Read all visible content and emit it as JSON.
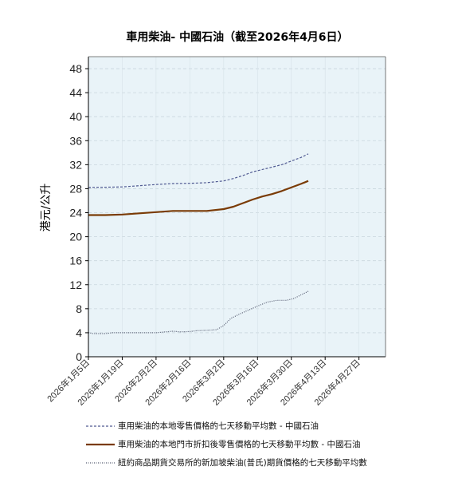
{
  "chart_data": {
    "type": "line",
    "title": "車用柴油- 中國石油（截至2026年4月6日）",
    "ylabel": "港元/公升",
    "xlabel": "",
    "ylim": [
      0,
      50
    ],
    "yticks": [
      0,
      4,
      8,
      12,
      16,
      20,
      24,
      28,
      32,
      36,
      40,
      44,
      48
    ],
    "x_range": [
      "2026-01-05",
      "2026-05-08"
    ],
    "x_ticks": [
      "2026年1月5日",
      "2026年1月19日",
      "2026年2月2日",
      "2026年2月16日",
      "2026年3月2日",
      "2026年3月16日",
      "2026年3月30日",
      "2026年4月13日",
      "2026年4月27日"
    ],
    "x_tick_dates": [
      "2026-01-05",
      "2026-01-19",
      "2026-02-02",
      "2026-02-16",
      "2026-03-02",
      "2026-03-16",
      "2026-03-30",
      "2026-04-13",
      "2026-04-27"
    ],
    "grid": "horizontal dashed",
    "plot_background": "#e9f3f8",
    "legend_position": "bottom",
    "series": [
      {
        "name": "車用柴油的本地零售價格的七天移動平均數  - 中國石油",
        "style": "dashed",
        "color": "#505a92",
        "points": [
          [
            "2026-01-05",
            28.2
          ],
          [
            "2026-01-12",
            28.25
          ],
          [
            "2026-01-19",
            28.3
          ],
          [
            "2026-01-26",
            28.5
          ],
          [
            "2026-02-02",
            28.7
          ],
          [
            "2026-02-09",
            28.85
          ],
          [
            "2026-02-16",
            28.9
          ],
          [
            "2026-02-23",
            29.0
          ],
          [
            "2026-03-02",
            29.3
          ],
          [
            "2026-03-06",
            29.7
          ],
          [
            "2026-03-10",
            30.2
          ],
          [
            "2026-03-14",
            30.8
          ],
          [
            "2026-03-18",
            31.2
          ],
          [
            "2026-03-22",
            31.6
          ],
          [
            "2026-03-26",
            32.0
          ],
          [
            "2026-03-30",
            32.6
          ],
          [
            "2026-04-03",
            33.2
          ],
          [
            "2026-04-06",
            33.8
          ]
        ]
      },
      {
        "name": "車用柴油的本地門市折扣後零售價格的七天移動平均數  - 中國石油",
        "style": "solid",
        "color": "#7a3b06",
        "points": [
          [
            "2026-01-05",
            23.6
          ],
          [
            "2026-01-12",
            23.6
          ],
          [
            "2026-01-19",
            23.7
          ],
          [
            "2026-01-26",
            23.9
          ],
          [
            "2026-02-02",
            24.1
          ],
          [
            "2026-02-09",
            24.3
          ],
          [
            "2026-02-16",
            24.3
          ],
          [
            "2026-02-23",
            24.3
          ],
          [
            "2026-03-02",
            24.6
          ],
          [
            "2026-03-06",
            25.0
          ],
          [
            "2026-03-10",
            25.6
          ],
          [
            "2026-03-14",
            26.2
          ],
          [
            "2026-03-18",
            26.7
          ],
          [
            "2026-03-22",
            27.1
          ],
          [
            "2026-03-26",
            27.6
          ],
          [
            "2026-03-30",
            28.2
          ],
          [
            "2026-04-03",
            28.8
          ],
          [
            "2026-04-06",
            29.3
          ]
        ]
      },
      {
        "name": "紐約商品期貨交易所的新加坡柴油(普氏)期貨價格的七天移動平均數",
        "style": "dotted",
        "color": "#555b70",
        "points": [
          [
            "2026-01-05",
            4.0
          ],
          [
            "2026-01-07",
            3.85
          ],
          [
            "2026-01-12",
            3.85
          ],
          [
            "2026-01-15",
            4.0
          ],
          [
            "2026-01-19",
            4.0
          ],
          [
            "2026-01-26",
            4.0
          ],
          [
            "2026-02-02",
            4.0
          ],
          [
            "2026-02-06",
            4.15
          ],
          [
            "2026-02-09",
            4.25
          ],
          [
            "2026-02-12",
            4.15
          ],
          [
            "2026-02-16",
            4.2
          ],
          [
            "2026-02-19",
            4.35
          ],
          [
            "2026-02-23",
            4.4
          ],
          [
            "2026-02-27",
            4.5
          ],
          [
            "2026-03-02",
            5.2
          ],
          [
            "2026-03-05",
            6.4
          ],
          [
            "2026-03-09",
            7.2
          ],
          [
            "2026-03-13",
            7.9
          ],
          [
            "2026-03-17",
            8.6
          ],
          [
            "2026-03-20",
            9.1
          ],
          [
            "2026-03-24",
            9.4
          ],
          [
            "2026-03-28",
            9.4
          ],
          [
            "2026-03-31",
            9.7
          ],
          [
            "2026-04-03",
            10.3
          ],
          [
            "2026-04-06",
            10.9
          ]
        ]
      }
    ]
  }
}
